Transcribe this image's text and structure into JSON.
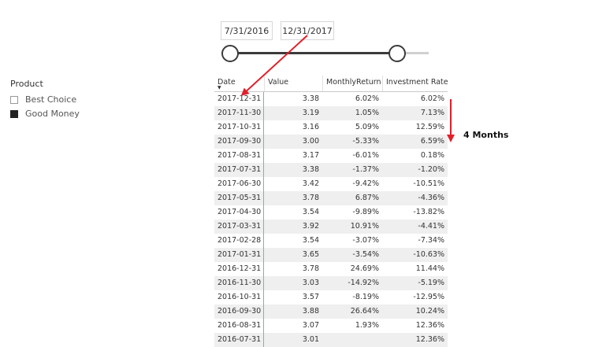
{
  "slicer": {
    "start_date": "7/31/2016",
    "end_date": "12/31/2017",
    "start_fraction": 0.0,
    "end_fraction": 0.84
  },
  "legend": {
    "title": "Product",
    "items": [
      {
        "label": "Best Choice",
        "selected": false
      },
      {
        "label": "Good Money",
        "selected": true
      }
    ]
  },
  "table": {
    "headers": [
      "Date",
      "Value",
      "MonthlyReturn",
      "Investment Rate"
    ],
    "sort_indicator": "▼",
    "rows": [
      [
        "2017-12-31",
        "3.38",
        "6.02%",
        "6.02%"
      ],
      [
        "2017-11-30",
        "3.19",
        "1.05%",
        "7.13%"
      ],
      [
        "2017-10-31",
        "3.16",
        "5.09%",
        "12.59%"
      ],
      [
        "2017-09-30",
        "3.00",
        "-5.33%",
        "6.59%"
      ],
      [
        "2017-08-31",
        "3.17",
        "-6.01%",
        "0.18%"
      ],
      [
        "2017-07-31",
        "3.38",
        "-1.37%",
        "-1.20%"
      ],
      [
        "2017-06-30",
        "3.42",
        "-9.42%",
        "-10.51%"
      ],
      [
        "2017-05-31",
        "3.78",
        "6.87%",
        "-4.36%"
      ],
      [
        "2017-04-30",
        "3.54",
        "-9.89%",
        "-13.82%"
      ],
      [
        "2017-03-31",
        "3.92",
        "10.91%",
        "-4.41%"
      ],
      [
        "2017-02-28",
        "3.54",
        "-3.07%",
        "-7.34%"
      ],
      [
        "2017-01-31",
        "3.65",
        "-3.54%",
        "-10.63%"
      ],
      [
        "2016-12-31",
        "3.78",
        "24.69%",
        "11.44%"
      ],
      [
        "2016-11-30",
        "3.03",
        "-14.92%",
        "-5.19%"
      ],
      [
        "2016-10-31",
        "3.57",
        "-8.19%",
        "-12.95%"
      ],
      [
        "2016-09-30",
        "3.88",
        "26.64%",
        "10.24%"
      ],
      [
        "2016-08-31",
        "3.07",
        "1.93%",
        "12.36%"
      ],
      [
        "2016-07-31",
        "3.01",
        "",
        "12.36%"
      ]
    ]
  },
  "annotation": {
    "label": "4 Months",
    "color": "#e0202a"
  }
}
